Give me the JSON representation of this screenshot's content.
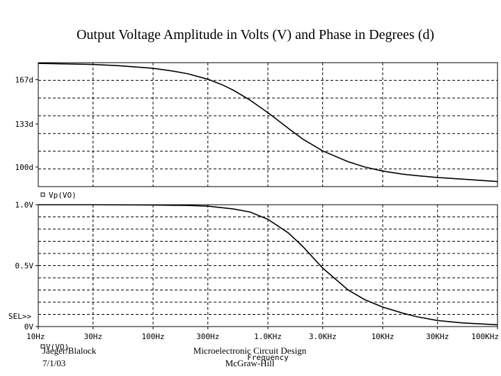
{
  "title": "Output Voltage Amplitude in Volts (V) and Phase in Degrees (d)",
  "chart_data": [
    {
      "type": "line",
      "panel": "phase",
      "x_scale": "log",
      "xlim": [
        10,
        100000
      ],
      "ylim": [
        85,
        180
      ],
      "y_ticks": [
        {
          "value": 167,
          "label": "167d"
        },
        {
          "value": 133,
          "label": "133d"
        },
        {
          "value": 100,
          "label": "100d"
        }
      ],
      "grid": true,
      "series": [
        {
          "name": "Vp(VO)",
          "x": [
            10,
            20,
            30,
            50,
            100,
            150,
            200,
            300,
            400,
            500,
            700,
            1000,
            1500,
            2000,
            3000,
            5000,
            7000,
            10000,
            15000,
            20000,
            30000,
            50000,
            100000
          ],
          "y": [
            179.4,
            179.0,
            178.6,
            177.7,
            175.7,
            173.5,
            171.5,
            167.3,
            163.1,
            158.9,
            151.3,
            141.7,
            129.8,
            121.6,
            112.4,
            104.1,
            100.0,
            96.9,
            94.5,
            93.4,
            92.0,
            90.7,
            88.9
          ]
        }
      ]
    },
    {
      "type": "line",
      "panel": "amplitude",
      "x_scale": "log",
      "xlim": [
        10,
        100000
      ],
      "ylim": [
        0,
        1.0
      ],
      "y_ticks": [
        {
          "value": 1.0,
          "label": "1.0V"
        },
        {
          "value": 0.5,
          "label": "0.5V"
        },
        {
          "value": 0,
          "label": "0V"
        }
      ],
      "x_ticks": [
        {
          "value": 10,
          "label": "10Hz"
        },
        {
          "value": 30,
          "label": "30Hz"
        },
        {
          "value": 100,
          "label": "100Hz"
        },
        {
          "value": 300,
          "label": "300Hz"
        },
        {
          "value": 1000,
          "label": "1.0KHz"
        },
        {
          "value": 3000,
          "label": "3.0KHz"
        },
        {
          "value": 10000,
          "label": "10KHz"
        },
        {
          "value": 30000,
          "label": "30KHz"
        },
        {
          "value": 100000,
          "label": "100KHz"
        }
      ],
      "xlabel": "Frequency",
      "grid": true,
      "series": [
        {
          "name": "V(VO)",
          "x": [
            10,
            30,
            100,
            200,
            300,
            500,
            700,
            1000,
            1500,
            2000,
            3000,
            5000,
            7000,
            10000,
            15000,
            20000,
            30000,
            50000,
            100000
          ],
          "y": [
            1.0,
            1.0,
            0.998,
            0.994,
            0.988,
            0.965,
            0.94,
            0.88,
            0.77,
            0.66,
            0.48,
            0.3,
            0.22,
            0.16,
            0.11,
            0.08,
            0.05,
            0.03,
            0.015
          ]
        }
      ],
      "selection_marker": "SEL>>"
    }
  ],
  "footer": {
    "left_line1": "Jaeger/Blalock",
    "left_line2": "7/1/03",
    "center_line1": "Microelectronic Circuit Design",
    "center_line2": "McGraw-Hill"
  }
}
